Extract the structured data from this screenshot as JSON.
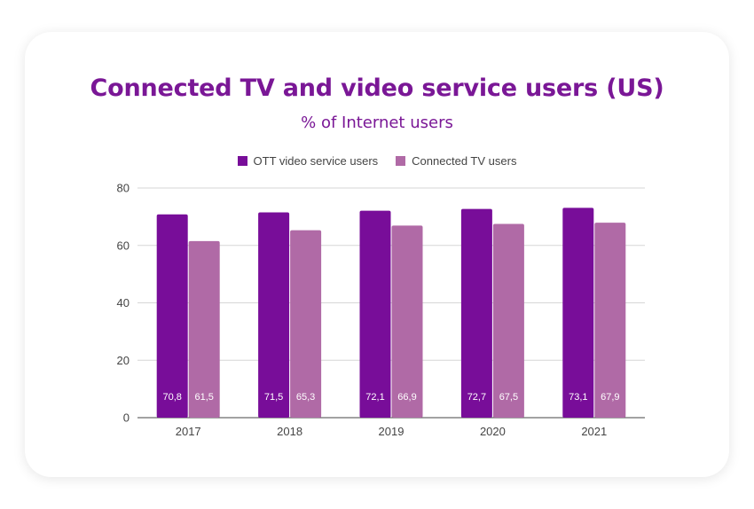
{
  "colors": {
    "series1": "#780d99",
    "series2": "#b06aa6",
    "title": "#7a1796",
    "grid": "#d6d6d6",
    "axis": "#444444"
  },
  "chart_data": {
    "type": "bar",
    "title": "Connected TV and video service users (US)",
    "subtitle": "% of Internet users",
    "categories": [
      "2017",
      "2018",
      "2019",
      "2020",
      "2021"
    ],
    "series": [
      {
        "name": "OTT video service users",
        "values": [
          70.8,
          71.5,
          72.1,
          72.7,
          73.1
        ],
        "labels": [
          "70,8",
          "71,5",
          "72,1",
          "72,7",
          "73,1"
        ]
      },
      {
        "name": "Connected TV users",
        "values": [
          61.5,
          65.3,
          66.9,
          67.5,
          67.9
        ],
        "labels": [
          "61,5",
          "65,3",
          "66,9",
          "67,5",
          "67,9"
        ]
      }
    ],
    "ylim": [
      0,
      80
    ],
    "yticks": [
      "0",
      "20",
      "40",
      "60",
      "80"
    ],
    "grid": true,
    "legend_position": "top-center"
  }
}
